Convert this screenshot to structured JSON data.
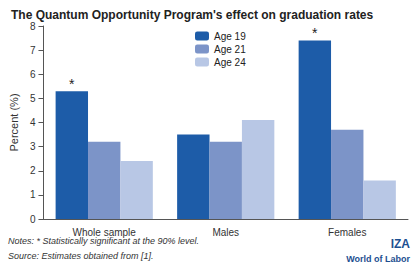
{
  "chart_data": {
    "type": "bar",
    "title": "The Quantum Opportunity Program's effect on graduation rates",
    "y_label": "Percent (%)",
    "categories": [
      "Whole sample",
      "Males",
      "Females"
    ],
    "series": [
      {
        "name": "Age 19",
        "color": "#1d5ca8",
        "values": [
          5.3,
          3.5,
          7.4
        ]
      },
      {
        "name": "Age 21",
        "color": "#7c94c8",
        "values": [
          3.2,
          3.2,
          3.7
        ]
      },
      {
        "name": "Age 24",
        "color": "#b8c7e5",
        "values": [
          2.4,
          4.1,
          1.6
        ]
      }
    ],
    "annotations": [
      {
        "series": "Age 19",
        "category": "Whole sample",
        "text": "*"
      },
      {
        "series": "Age 19",
        "category": "Females",
        "text": "*"
      }
    ],
    "ylim": [
      0,
      8
    ],
    "yticks": [
      0,
      1,
      2,
      3,
      4,
      5,
      6,
      7,
      8
    ],
    "grid": false,
    "legend": "top",
    "notes": "Notes: * Statistically significant at the 90% level.",
    "source": "Source: Estimates obtained from [1].",
    "logo": [
      "IZA",
      "World of Labor"
    ]
  }
}
